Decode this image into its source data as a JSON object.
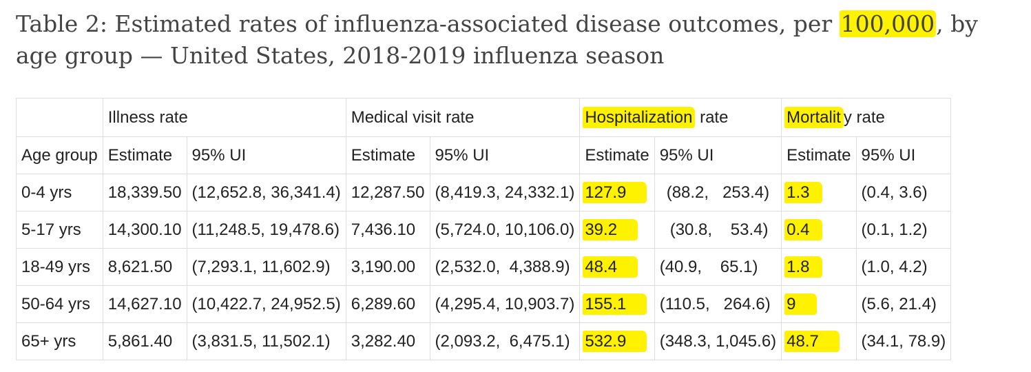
{
  "title": {
    "before": "Table 2: Estimated rates of influenza-associated disease outcomes, per ",
    "highlight": "100,000",
    "after": ", by age group — United States, 2018-2019 influenza season"
  },
  "header": {
    "group_row": {
      "blank": "",
      "illness": "Illness rate",
      "medical": "Medical visit rate",
      "hospitalization_hl": "Hospitalization",
      "hospitalization_rest": " rate",
      "mortality_hl": "Mortalit",
      "mortality_rest": "y rate"
    },
    "sub_row": {
      "age_group": "Age group",
      "estimate": "Estimate",
      "ui": "95% UI"
    }
  },
  "rows": [
    {
      "age": "0-4 yrs",
      "ill_est": "18,339.50",
      "ill_ui": "(12,652.8, 36,341.4)",
      "med_est": "12,287.50",
      "med_ui": "(8,419.3, 24,332.1)",
      "hosp_est": "127.9",
      "hosp_ui": "(88.2,   253.4)",
      "mort_est": "1.3",
      "mort_ui": "(0.4, 3.6)"
    },
    {
      "age": "5-17 yrs",
      "ill_est": "14,300.10",
      "ill_ui": "(11,248.5, 19,478.6)",
      "med_est": "7,436.10",
      "med_ui": "(5,724.0, 10,106.0)",
      "hosp_est": "39.2",
      "hosp_ui": "(30.8,    53.4)",
      "mort_est": "0.4",
      "mort_ui": "(0.1, 1.2)"
    },
    {
      "age": "18-49 yrs",
      "ill_est": "8,621.50",
      "ill_ui": "(7,293.1, 11,602.9)",
      "med_est": "3,190.00",
      "med_ui": "(2,532.0,  4,388.9)",
      "hosp_est": "48.4",
      "hosp_ui": "(40.9,    65.1)",
      "mort_est": "1.8",
      "mort_ui": "(1.0, 4.2)"
    },
    {
      "age": "50-64 yrs",
      "ill_est": "14,627.10",
      "ill_ui": "(10,422.7, 24,952.5)",
      "med_est": "6,289.60",
      "med_ui": "(4,295.4, 10,903.7)",
      "hosp_est": "155.1",
      "hosp_ui": "(110.5,   264.6)",
      "mort_est": "9",
      "mort_ui": "(5.6, 21.4)"
    },
    {
      "age": "65+ yrs",
      "ill_est": "5,861.40",
      "ill_ui": "(3,831.5, 11,502.1)",
      "med_est": "3,282.40",
      "med_ui": "(2,093.2,  6,475.1)",
      "hosp_est": "532.9",
      "hosp_ui": "(348.3, 1,045.6)",
      "mort_est": "48.7",
      "mort_ui": "(34.1, 78.9)"
    }
  ],
  "colors": {
    "highlight": "#fff200",
    "border": "#dddddd",
    "title": "#444444",
    "text": "#222222"
  }
}
